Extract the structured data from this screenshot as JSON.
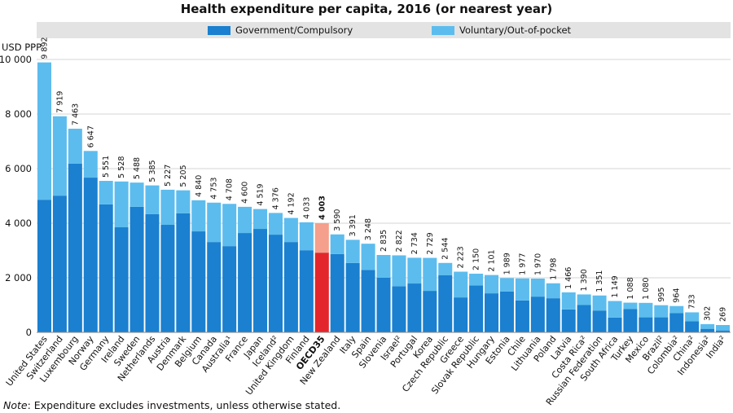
{
  "chart_data": {
    "type": "stacked_bar",
    "title": "Health expenditure per capita, 2016 (or nearest year)",
    "ylabel": "USD PPP",
    "categories": [
      "United States",
      "Switzerland",
      "Luxembourg",
      "Norway",
      "Germany",
      "Ireland",
      "Sweden",
      "Netherlands",
      "Austria",
      "Denmark",
      "Belgium",
      "Canada",
      "Australia¹",
      "France",
      "Japan",
      "Iceland²",
      "United Kingdom",
      "Finland",
      "OECD35",
      "New Zealand",
      "Italy",
      "Spain",
      "Slovenia",
      "Israel²",
      "Portugal",
      "Korea",
      "Czech Republic",
      "Greece",
      "Slovak Republic",
      "Hungary",
      "Estonia",
      "Chile",
      "Lithuania",
      "Poland",
      "Latvia",
      "Costa Rica²",
      "Russian Federation",
      "South Africa",
      "Turkey",
      "Mexico",
      "Brazil²",
      "Colombia²",
      "China²",
      "Indonesia²",
      "India²"
    ],
    "series": [
      {
        "name": "Government/Compulsory",
        "color": "#1a80cf",
        "highlight_color": "#e3262b",
        "values": [
          4860,
          5010,
          6180,
          5670,
          4690,
          3850,
          4600,
          4330,
          3940,
          4360,
          3700,
          3310,
          3160,
          3640,
          3790,
          3580,
          3310,
          3010,
          2920,
          2870,
          2540,
          2290,
          2000,
          1690,
          1790,
          1520,
          2090,
          1280,
          1720,
          1430,
          1500,
          1170,
          1310,
          1250,
          840,
          1000,
          800,
          540,
          860,
          550,
          550,
          710,
          410,
          130,
          70
        ]
      },
      {
        "name": "Voluntary/Out-of-pocket",
        "color": "#5cbcee",
        "highlight_color": "#f4a08c",
        "values": [
          5032,
          2909,
          1283,
          977,
          861,
          1678,
          888,
          1055,
          1287,
          845,
          1140,
          1443,
          1548,
          960,
          729,
          796,
          882,
          1023,
          1083,
          720,
          851,
          958,
          835,
          1132,
          944,
          1209,
          454,
          943,
          430,
          671,
          489,
          807,
          660,
          548,
          626,
          390,
          551,
          609,
          228,
          530,
          445,
          254,
          323,
          172,
          199
        ]
      }
    ],
    "highlight_category": "OECD35",
    "totals": [
      9892,
      7919,
      7463,
      6647,
      5551,
      5528,
      5488,
      5385,
      5227,
      5205,
      4840,
      4753,
      4708,
      4600,
      4519,
      4376,
      4192,
      4033,
      4003,
      3590,
      3391,
      3248,
      2835,
      2822,
      2734,
      2729,
      2544,
      2223,
      2150,
      2101,
      1989,
      1977,
      1970,
      1798,
      1466,
      1390,
      1351,
      1149,
      1088,
      1080,
      995,
      964,
      733,
      302,
      269
    ],
    "total_labels": [
      "9 892",
      "7 919",
      "7 463",
      "6 647",
      "5 551",
      "5 528",
      "5 488",
      "5 385",
      "5 227",
      "5 205",
      "4 840",
      "4 753",
      "4 708",
      "4 600",
      "4 519",
      "4 376",
      "4 192",
      "4 033",
      "4 003",
      "3 590",
      "3 391",
      "3 248",
      "2 835",
      "2 822",
      "2 734",
      "2 729",
      "2 544",
      "2 223",
      "2 150",
      "2 101",
      "1 989",
      "1 977",
      "1 970",
      "1 798",
      "1 466",
      "1 390",
      "1 351",
      "1 149",
      "1 088",
      "1 080",
      "995",
      "964",
      "733",
      "302",
      "269"
    ],
    "ylim": [
      0,
      10000
    ],
    "yticks": [
      0,
      {
        "value": 2000,
        "label": "2 000"
      },
      {
        "value": 4000,
        "label": "4 000"
      },
      {
        "value": 6000,
        "label": "6 000"
      },
      {
        "value": 8000,
        "label": "8 000"
      },
      {
        "value": 10000,
        "label": "10 000"
      }
    ],
    "grid": true,
    "legend": "top",
    "note": {
      "label": "Note",
      "text": ": Expenditure excludes investments, unless otherwise stated."
    }
  }
}
